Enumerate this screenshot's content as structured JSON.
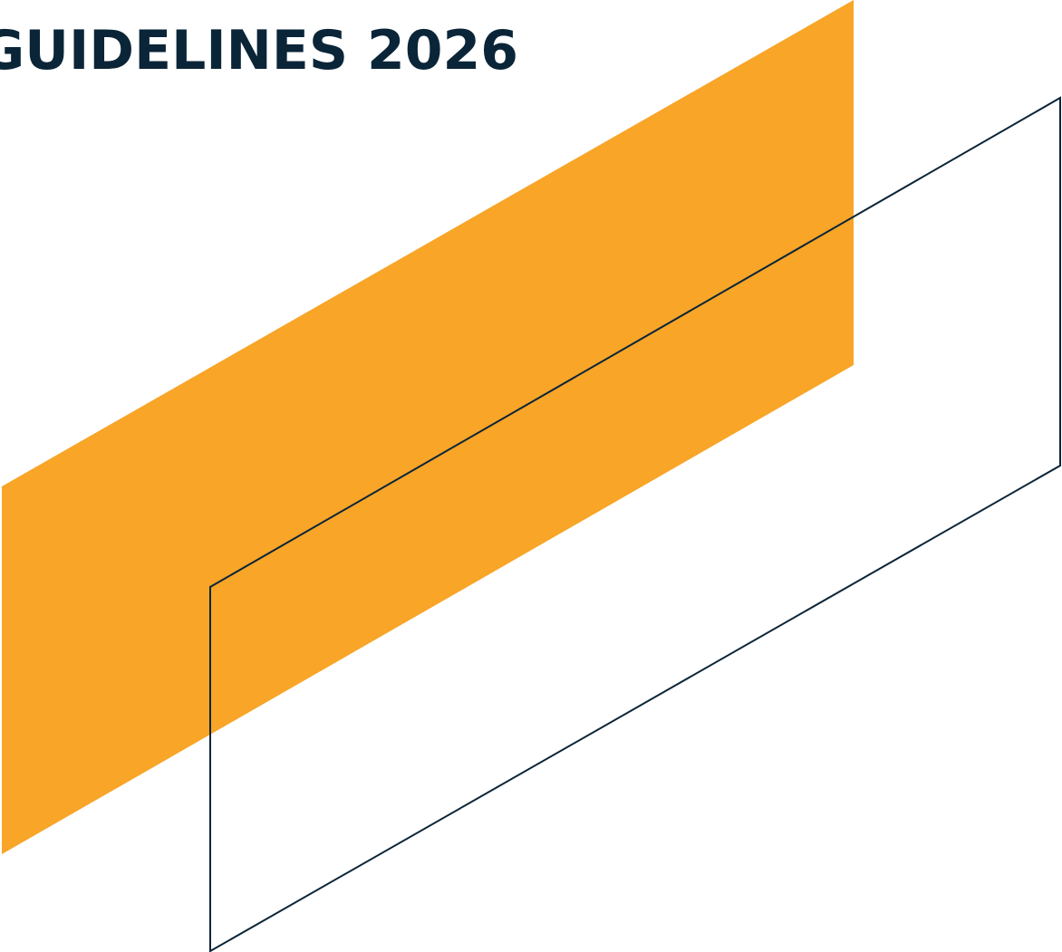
{
  "page": {
    "title": "GUIDELINES 2026"
  },
  "colors": {
    "background": "#ffffff",
    "accent": "#F8A528",
    "navy": "#0B2538"
  }
}
